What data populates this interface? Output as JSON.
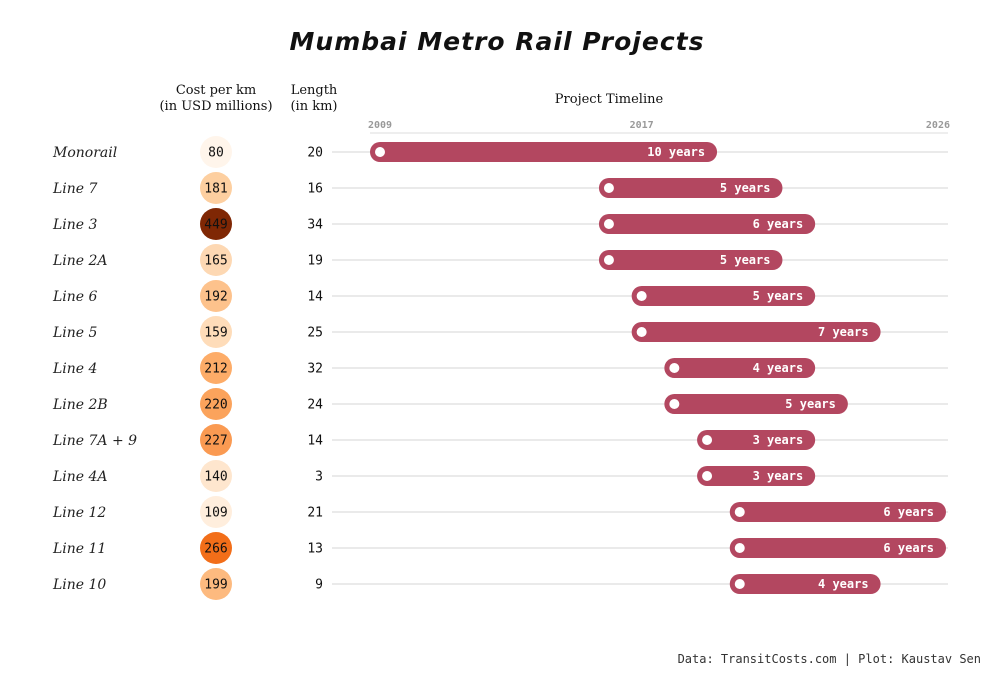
{
  "chart_data": {
    "type": "gantt",
    "title": "Mumbai Metro Rail Projects",
    "headers": {
      "cost_line1": "Cost per km",
      "cost_line2": "(in USD millions)",
      "length_line1": "Length",
      "length_line2": "(in km)",
      "timeline": "Project Timeline"
    },
    "x_ticks": [
      2009,
      2017,
      2026
    ],
    "xlim": [
      2009,
      2026
    ],
    "rows": [
      {
        "name": "Monorail",
        "cost": 80,
        "length": 20,
        "start": 2009,
        "end": 2019,
        "duration": "10 years"
      },
      {
        "name": "Line 7",
        "cost": 181,
        "length": 16,
        "start": 2016,
        "end": 2021,
        "duration": "5 years"
      },
      {
        "name": "Line 3",
        "cost": 449,
        "length": 34,
        "start": 2016,
        "end": 2022,
        "duration": "6 years"
      },
      {
        "name": "Line 2A",
        "cost": 165,
        "length": 19,
        "start": 2016,
        "end": 2021,
        "duration": "5 years"
      },
      {
        "name": "Line 6",
        "cost": 192,
        "length": 14,
        "start": 2017,
        "end": 2022,
        "duration": "5 years"
      },
      {
        "name": "Line 5",
        "cost": 159,
        "length": 25,
        "start": 2017,
        "end": 2024,
        "duration": "7 years"
      },
      {
        "name": "Line 4",
        "cost": 212,
        "length": 32,
        "start": 2018,
        "end": 2022,
        "duration": "4 years"
      },
      {
        "name": "Line 2B",
        "cost": 220,
        "length": 24,
        "start": 2018,
        "end": 2023,
        "duration": "5 years"
      },
      {
        "name": "Line 7A + 9",
        "cost": 227,
        "length": 14,
        "start": 2019,
        "end": 2022,
        "duration": "3 years"
      },
      {
        "name": "Line 4A",
        "cost": 140,
        "length": 3,
        "start": 2019,
        "end": 2022,
        "duration": "3 years"
      },
      {
        "name": "Line 12",
        "cost": 109,
        "length": 21,
        "start": 2020,
        "end": 2026,
        "duration": "6 years"
      },
      {
        "name": "Line 11",
        "cost": 266,
        "length": 13,
        "start": 2020,
        "end": 2026,
        "duration": "6 years"
      },
      {
        "name": "Line 10",
        "cost": 199,
        "length": 9,
        "start": 2020,
        "end": 2024,
        "duration": "4 years"
      }
    ],
    "cost_color_scale": [
      "#fff5eb",
      "#fdd0a2",
      "#fdae6b",
      "#f16913",
      "#7f2704"
    ],
    "bar_color": "#b34760",
    "grid": true,
    "footer": "Data: TransitCosts.com | Plot: Kaustav Sen"
  }
}
